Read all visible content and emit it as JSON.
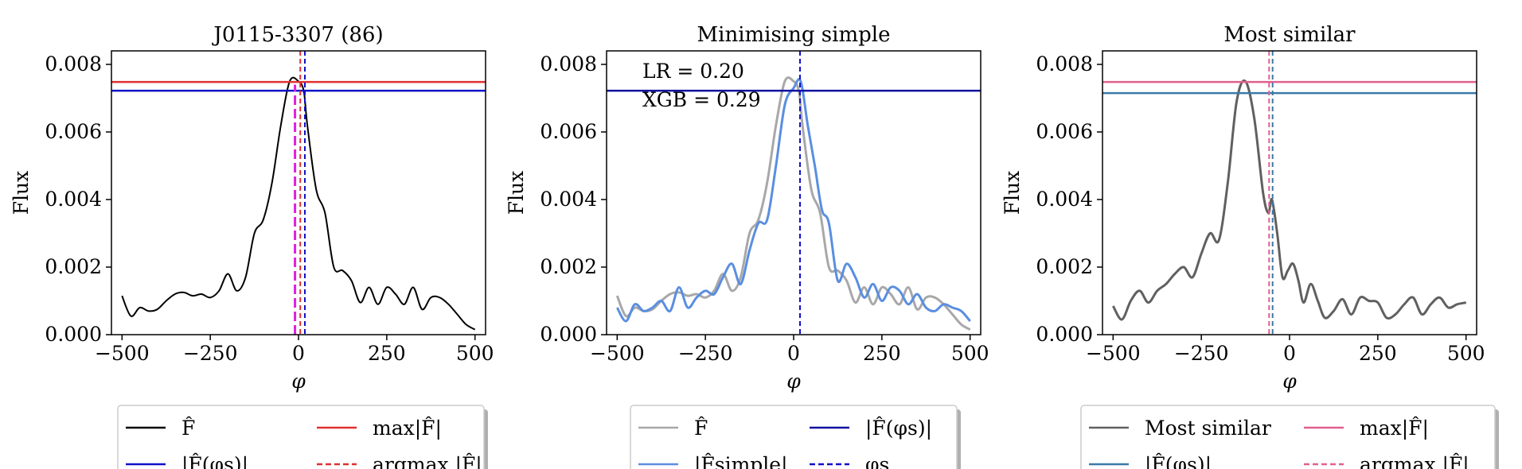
{
  "chart_data": [
    {
      "type": "line",
      "title": "J0115-3307 (86)",
      "xlabel": "φ",
      "ylabel": "Flux",
      "xlim": [
        -530,
        530
      ],
      "ylim": [
        0,
        0.0084
      ],
      "xticks": [
        "−500",
        "−250",
        "0",
        "250",
        "500"
      ],
      "xtick_values": [
        -500,
        -250,
        0,
        250,
        500
      ],
      "yticks": [
        "0.000",
        "0.002",
        "0.004",
        "0.006",
        "0.008"
      ],
      "ytick_values": [
        0,
        0.002,
        0.004,
        0.006,
        0.008
      ],
      "series": [
        {
          "name": "F̂",
          "color": "#000000",
          "style": "solid",
          "x": [
            -500,
            -475,
            -450,
            -425,
            -400,
            -375,
            -350,
            -325,
            -300,
            -275,
            -250,
            -225,
            -200,
            -175,
            -150,
            -125,
            -100,
            -75,
            -50,
            -25,
            0,
            15,
            25,
            50,
            75,
            100,
            125,
            150,
            175,
            200,
            225,
            250,
            275,
            300,
            325,
            350,
            375,
            400,
            425,
            450,
            475,
            500
          ],
          "y": [
            0.00115,
            0.00055,
            0.0008,
            0.0007,
            0.00075,
            0.001,
            0.0012,
            0.00125,
            0.00115,
            0.0012,
            0.0011,
            0.0013,
            0.0018,
            0.0013,
            0.0017,
            0.003,
            0.0034,
            0.0045,
            0.0062,
            0.0075,
            0.0075,
            0.0072,
            0.0062,
            0.0043,
            0.0036,
            0.002,
            0.0019,
            0.0016,
            0.00095,
            0.0014,
            0.0009,
            0.0014,
            0.0012,
            0.0009,
            0.0014,
            0.00075,
            0.0011,
            0.0011,
            0.0009,
            0.0006,
            0.0003,
            0.00015
          ]
        },
        {
          "name": "|F̂(φs)|",
          "color": "#1010c8",
          "style": "hline",
          "y": 0.00722
        },
        {
          "name": "max|F̂|",
          "color": "#e03030",
          "style": "hline",
          "y": 0.00748
        },
        {
          "name": "argmax |F̂|",
          "color": "#e03030",
          "style": "dashed-vline",
          "x": 5
        },
        {
          "name": "φs",
          "color": "#1010c8",
          "style": "dashed-vline",
          "x": 18
        },
        {
          "name": "",
          "color": "#e020e0",
          "style": "magenta-dashed",
          "x": [
            -10,
            -10
          ],
          "y": [
            0,
            0.0074
          ]
        }
      ],
      "legend": {
        "placement": "below",
        "entries": [
          {
            "label": "F̂",
            "color": "#000000",
            "style": "solid"
          },
          {
            "label": "max|F̂|",
            "color": "#e03030",
            "style": "solid"
          },
          {
            "label": "|F̂(φs)|",
            "color": "#1010c8",
            "style": "solid"
          },
          {
            "label": "argmax |F̂|",
            "color": "#e03030",
            "style": "dashed"
          }
        ]
      }
    },
    {
      "type": "line",
      "title": "Minimising simple",
      "xlabel": "φ",
      "ylabel": "Flux",
      "xlim": [
        -530,
        530
      ],
      "ylim": [
        0,
        0.0084
      ],
      "xticks": [
        "−500",
        "−250",
        "0",
        "250",
        "500"
      ],
      "xtick_values": [
        -500,
        -250,
        0,
        250,
        500
      ],
      "yticks": [
        "0.000",
        "0.002",
        "0.004",
        "0.006",
        "0.008"
      ],
      "ytick_values": [
        0,
        0.002,
        0.004,
        0.006,
        0.008
      ],
      "annotations": [
        "LR = 0.20",
        "XGB = 0.29"
      ],
      "series": [
        {
          "name": "F̂",
          "color": "#a8a8a8",
          "style": "solid",
          "x": [
            -500,
            -475,
            -450,
            -425,
            -400,
            -375,
            -350,
            -325,
            -300,
            -275,
            -250,
            -225,
            -200,
            -175,
            -150,
            -125,
            -100,
            -75,
            -50,
            -25,
            0,
            15,
            25,
            50,
            75,
            100,
            125,
            150,
            175,
            200,
            225,
            250,
            275,
            300,
            325,
            350,
            375,
            400,
            425,
            450,
            475,
            500
          ],
          "y": [
            0.00115,
            0.00055,
            0.0008,
            0.0007,
            0.00075,
            0.001,
            0.0012,
            0.00125,
            0.00115,
            0.0012,
            0.0011,
            0.0013,
            0.0018,
            0.0013,
            0.0017,
            0.003,
            0.0034,
            0.0045,
            0.0062,
            0.0075,
            0.0075,
            0.0072,
            0.0062,
            0.0043,
            0.0036,
            0.002,
            0.0019,
            0.0016,
            0.00095,
            0.0014,
            0.0009,
            0.0014,
            0.0012,
            0.0009,
            0.0014,
            0.00075,
            0.0011,
            0.0011,
            0.0009,
            0.0006,
            0.0003,
            0.00015
          ]
        },
        {
          "name": "|F̂simple|",
          "color": "#5a8ee0",
          "style": "solid",
          "x": [
            -500,
            -475,
            -450,
            -425,
            -400,
            -375,
            -350,
            -325,
            -300,
            -275,
            -250,
            -225,
            -200,
            -175,
            -150,
            -125,
            -100,
            -75,
            -50,
            -25,
            0,
            20,
            40,
            60,
            80,
            100,
            125,
            150,
            175,
            200,
            225,
            250,
            275,
            300,
            325,
            350,
            375,
            400,
            425,
            450,
            475,
            500
          ],
          "y": [
            0.0008,
            0.0004,
            0.0009,
            0.0007,
            0.0008,
            0.001,
            0.0007,
            0.0014,
            0.0008,
            0.0011,
            0.0013,
            0.0012,
            0.0017,
            0.0021,
            0.0015,
            0.0025,
            0.0033,
            0.0034,
            0.005,
            0.0068,
            0.0073,
            0.0075,
            0.0062,
            0.005,
            0.0037,
            0.0033,
            0.0016,
            0.0021,
            0.0017,
            0.0011,
            0.0015,
            0.001,
            0.0014,
            0.0013,
            0.0009,
            0.0012,
            0.0008,
            0.0007,
            0.0009,
            0.0008,
            0.0007,
            0.0004
          ]
        },
        {
          "name": "|F̂(φs)|",
          "color": "#1010a0",
          "style": "hline",
          "y": 0.00722
        },
        {
          "name": "φs",
          "color": "#1010c8",
          "style": "dashed-vline",
          "x": 18
        }
      ],
      "legend": {
        "placement": "below",
        "entries": [
          {
            "label": "F̂",
            "color": "#a8a8a8",
            "style": "solid"
          },
          {
            "label": "|F̂(φs)|",
            "color": "#1010a0",
            "style": "solid"
          },
          {
            "label": "|F̂simple|",
            "color": "#5a8ee0",
            "style": "solid"
          },
          {
            "label": "φs",
            "color": "#1010c8",
            "style": "dashed"
          }
        ]
      }
    },
    {
      "type": "line",
      "title": "Most similar",
      "xlabel": "φ",
      "ylabel": "Flux",
      "xlim": [
        -530,
        530
      ],
      "ylim": [
        0,
        0.0084
      ],
      "xticks": [
        "−500",
        "−250",
        "0",
        "250",
        "500"
      ],
      "xtick_values": [
        -500,
        -250,
        0,
        250,
        500
      ],
      "yticks": [
        "0.000",
        "0.002",
        "0.004",
        "0.006",
        "0.008"
      ],
      "ytick_values": [
        0,
        0.002,
        0.004,
        0.006,
        0.008
      ],
      "series": [
        {
          "name": "Most similar",
          "color": "#606060",
          "style": "solid",
          "x": [
            -500,
            -475,
            -450,
            -425,
            -400,
            -375,
            -350,
            -325,
            -300,
            -275,
            -250,
            -225,
            -200,
            -175,
            -150,
            -125,
            -100,
            -75,
            -60,
            -50,
            -35,
            -20,
            -5,
            10,
            25,
            40,
            60,
            80,
            100,
            125,
            150,
            175,
            200,
            225,
            250,
            275,
            300,
            325,
            350,
            375,
            400,
            425,
            450,
            475,
            500
          ],
          "y": [
            0.00085,
            0.00045,
            0.001,
            0.0013,
            0.00095,
            0.0013,
            0.0015,
            0.0018,
            0.002,
            0.0017,
            0.0024,
            0.003,
            0.0028,
            0.0045,
            0.0069,
            0.0075,
            0.0064,
            0.0042,
            0.0036,
            0.004,
            0.003,
            0.0017,
            0.0019,
            0.0021,
            0.0016,
            0.00095,
            0.0015,
            0.001,
            0.0005,
            0.0007,
            0.00105,
            0.0006,
            0.0011,
            0.001,
            0.00095,
            0.0005,
            0.0006,
            0.0009,
            0.0011,
            0.0006,
            0.0009,
            0.0011,
            0.0008,
            0.0009,
            0.00095
          ]
        },
        {
          "name": "|F̂(φs)|",
          "color": "#3a7aa8",
          "style": "hline",
          "y": 0.00715
        },
        {
          "name": "max|F̂|",
          "color": "#e0608e",
          "style": "hline",
          "y": 0.00748
        },
        {
          "name": "argmax |F̂|",
          "color": "#e0608e",
          "style": "dashed-vline",
          "x": -58
        },
        {
          "name": "φs",
          "color": "#3a7aa8",
          "style": "dashed-vline",
          "x": -48
        }
      ],
      "legend": {
        "placement": "below",
        "entries": [
          {
            "label": "Most similar",
            "color": "#606060",
            "style": "solid"
          },
          {
            "label": "max|F̂|",
            "color": "#e0608e",
            "style": "solid"
          },
          {
            "label": "|F̂(φs)|",
            "color": "#3a7aa8",
            "style": "solid"
          },
          {
            "label": "argmax |F̂|",
            "color": "#e0608e",
            "style": "dashed"
          }
        ]
      }
    }
  ]
}
